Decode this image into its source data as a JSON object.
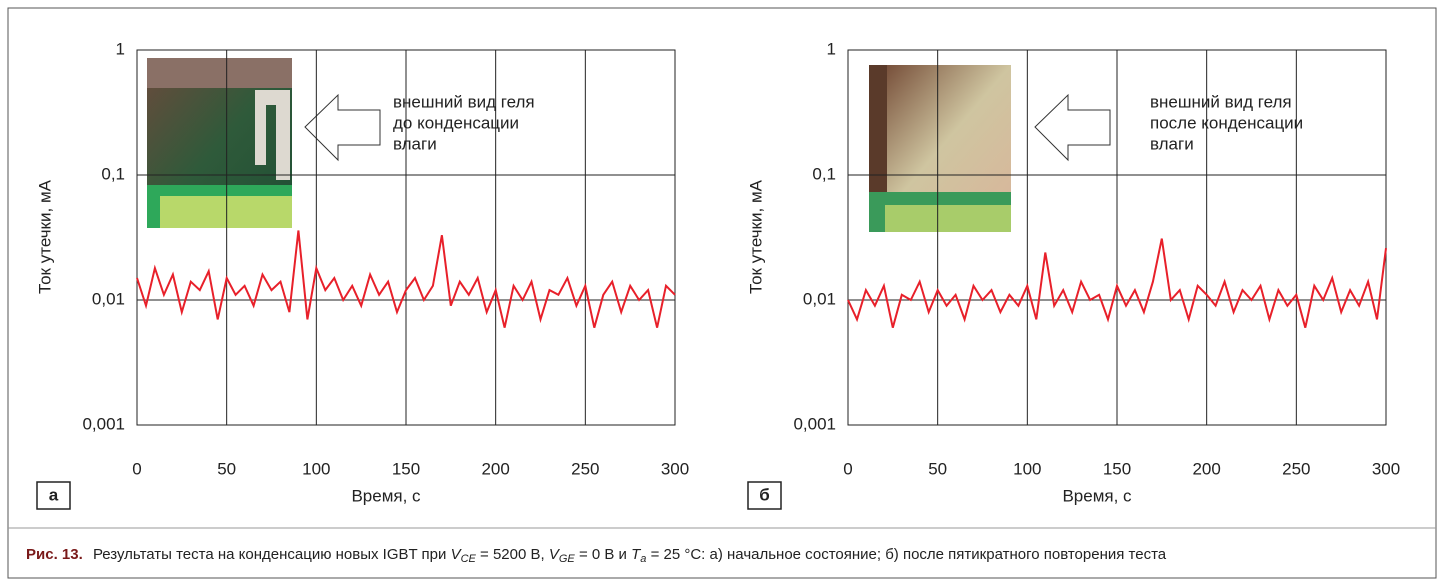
{
  "chart_data": [
    {
      "type": "line",
      "panel": "а",
      "xlabel": "Время, с",
      "ylabel": "Ток утечки, мА",
      "annotation": [
        "внешний вид геля",
        "до конденсации",
        "влаги"
      ],
      "x": [
        0,
        5,
        10,
        15,
        20,
        25,
        30,
        35,
        40,
        45,
        50,
        55,
        60,
        65,
        70,
        75,
        80,
        85,
        90,
        95,
        100,
        105,
        110,
        115,
        120,
        125,
        130,
        135,
        140,
        145,
        150,
        155,
        160,
        165,
        170,
        175,
        180,
        185,
        190,
        195,
        200,
        205,
        210,
        215,
        220,
        225,
        230,
        235,
        240,
        245,
        250,
        255,
        260,
        265,
        270,
        275,
        280,
        285,
        290,
        295,
        300
      ],
      "values": [
        0.015,
        0.009,
        0.018,
        0.011,
        0.016,
        0.008,
        0.014,
        0.012,
        0.017,
        0.007,
        0.015,
        0.011,
        0.013,
        0.009,
        0.016,
        0.012,
        0.014,
        0.008,
        0.036,
        0.007,
        0.018,
        0.012,
        0.015,
        0.01,
        0.013,
        0.009,
        0.016,
        0.011,
        0.014,
        0.008,
        0.012,
        0.015,
        0.01,
        0.013,
        0.033,
        0.009,
        0.014,
        0.011,
        0.015,
        0.008,
        0.012,
        0.006,
        0.013,
        0.01,
        0.014,
        0.007,
        0.012,
        0.011,
        0.015,
        0.009,
        0.013,
        0.006,
        0.011,
        0.014,
        0.008,
        0.013,
        0.01,
        0.012,
        0.006,
        0.013,
        0.011
      ],
      "color": "#e8202a",
      "xlim": [
        0,
        300
      ],
      "xticks": [
        0,
        50,
        100,
        150,
        200,
        250,
        300
      ],
      "ylim": [
        0.001,
        1
      ],
      "yscale": "log",
      "grid": true,
      "yticks": [
        {
          "value": 0.001,
          "label": "0,001"
        },
        {
          "value": 0.01,
          "label": "0,01"
        },
        {
          "value": 0.1,
          "label": "0,1"
        },
        1
      ]
    },
    {
      "type": "line",
      "panel": "б",
      "xlabel": "Время, с",
      "ylabel": "Ток утечки, мА",
      "annotation": [
        "внешний вид геля",
        "после конденсации",
        "влаги"
      ],
      "x": [
        0,
        5,
        10,
        15,
        20,
        25,
        30,
        35,
        40,
        45,
        50,
        55,
        60,
        65,
        70,
        75,
        80,
        85,
        90,
        95,
        100,
        105,
        110,
        115,
        120,
        125,
        130,
        135,
        140,
        145,
        150,
        155,
        160,
        165,
        170,
        175,
        180,
        185,
        190,
        195,
        200,
        205,
        210,
        215,
        220,
        225,
        230,
        235,
        240,
        245,
        250,
        255,
        260,
        265,
        270,
        275,
        280,
        285,
        290,
        295,
        300
      ],
      "values": [
        0.01,
        0.007,
        0.012,
        0.009,
        0.013,
        0.006,
        0.011,
        0.01,
        0.014,
        0.008,
        0.012,
        0.009,
        0.011,
        0.007,
        0.013,
        0.01,
        0.012,
        0.008,
        0.011,
        0.009,
        0.013,
        0.007,
        0.024,
        0.009,
        0.012,
        0.008,
        0.014,
        0.01,
        0.011,
        0.007,
        0.013,
        0.009,
        0.012,
        0.008,
        0.014,
        0.031,
        0.01,
        0.012,
        0.007,
        0.013,
        0.011,
        0.009,
        0.014,
        0.008,
        0.012,
        0.01,
        0.013,
        0.007,
        0.012,
        0.009,
        0.011,
        0.006,
        0.013,
        0.01,
        0.015,
        0.008,
        0.012,
        0.009,
        0.014,
        0.007,
        0.026
      ],
      "color": "#e8202a",
      "xlim": [
        0,
        300
      ],
      "xticks": [
        0,
        50,
        100,
        150,
        200,
        250,
        300
      ],
      "ylim": [
        0.001,
        1
      ],
      "yscale": "log",
      "grid": true,
      "yticks": [
        {
          "value": 0.001,
          "label": "0,001"
        },
        {
          "value": 0.01,
          "label": "0,01"
        },
        {
          "value": 0.1,
          "label": "0,1"
        },
        1
      ]
    }
  ],
  "caption": {
    "label": "Рис. 13.",
    "segments": [
      "Результаты теста на конденсацию новых IGBT при ",
      "V",
      "CE",
      " = 5200 В, ",
      "V",
      "GE",
      " = 0 В и ",
      "T",
      "a",
      " = 25 °C: а) начальное состояние; б) после пятикратного повторения теста"
    ]
  }
}
